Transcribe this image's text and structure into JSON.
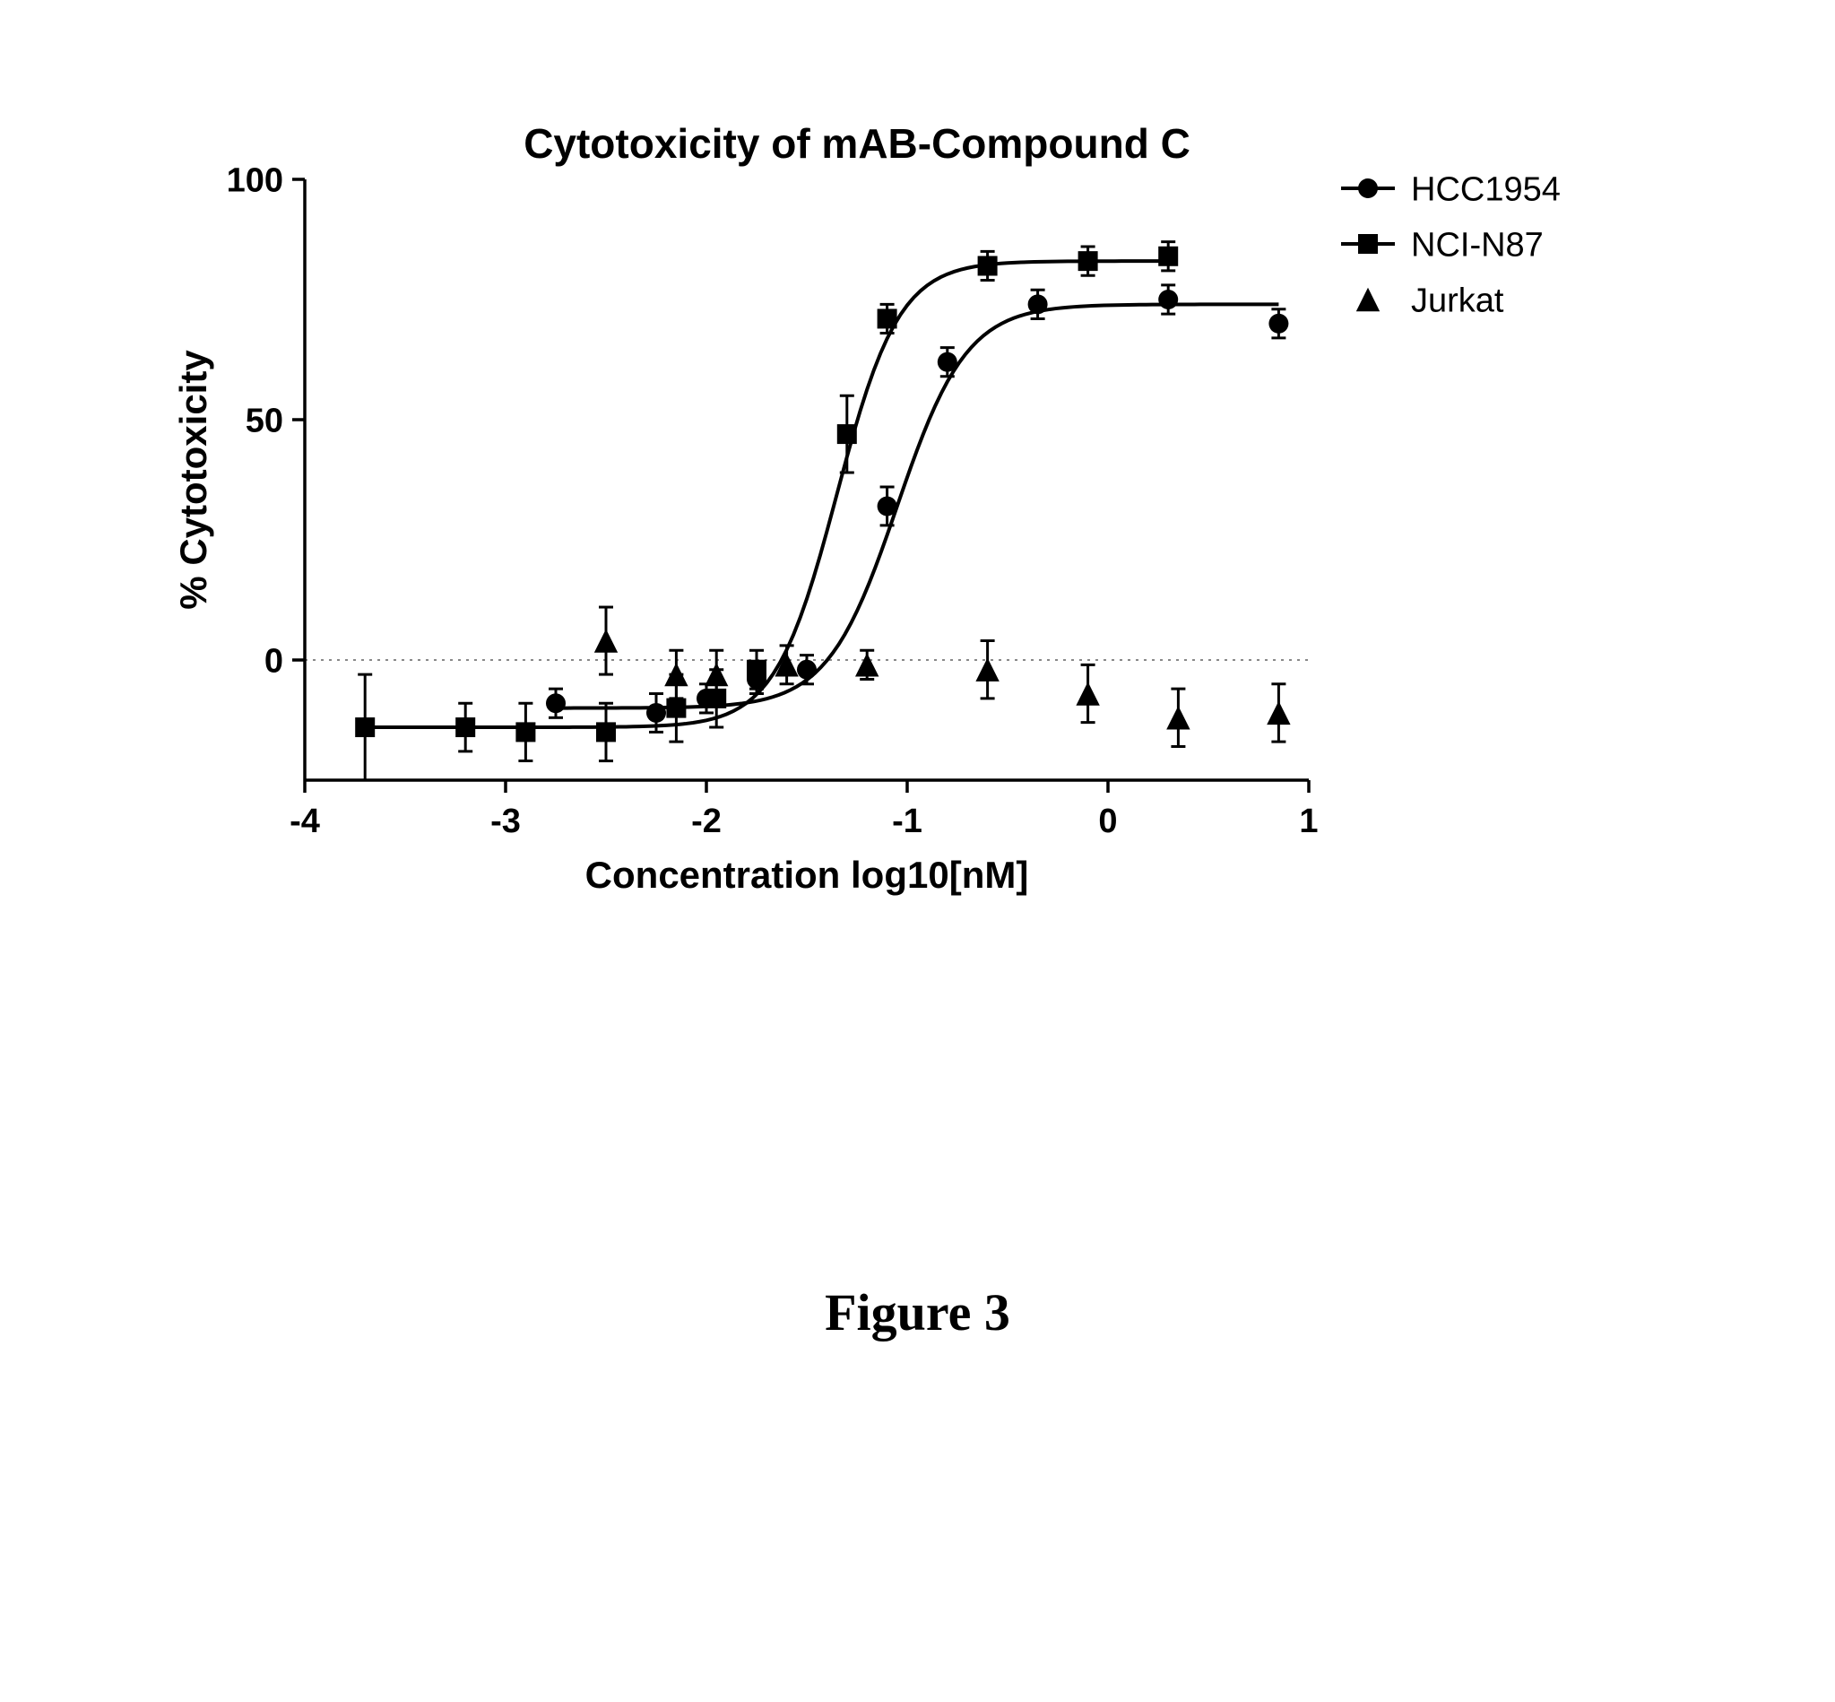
{
  "chart": {
    "type": "scatter+line",
    "title": "Cytotoxicity of mAB-Compound C",
    "title_fontsize": 46,
    "title_fontweight": "bold",
    "xlabel": "Concentration log10[nM]",
    "ylabel": "% Cytotoxicity",
    "label_fontsize": 42,
    "label_fontweight": "bold",
    "tick_fontsize": 38,
    "background_color": "#ffffff",
    "axis_color": "#000000",
    "axis_width": 3.5,
    "tick_length": 14,
    "xlim": [
      -4,
      1
    ],
    "ylim": [
      -25,
      100
    ],
    "xticks": [
      -4,
      -3,
      -2,
      -1,
      0,
      1
    ],
    "yticks": [
      0,
      50,
      100
    ],
    "zero_line": {
      "y": 0,
      "style": "dotted",
      "color": "#888888",
      "width": 2
    },
    "marker_size": 11,
    "error_cap_width": 16,
    "error_line_width": 3,
    "curve_width": 4,
    "series": {
      "HCC1954": {
        "label": "HCC1954",
        "marker": "circle",
        "color": "#000000",
        "has_curve": true,
        "curve": {
          "bottom": -10,
          "top": 74,
          "ec50": -1.05,
          "hill": 2.5
        },
        "points": [
          {
            "x": -2.75,
            "y": -9,
            "err": 3
          },
          {
            "x": -2.25,
            "y": -11,
            "err": 4
          },
          {
            "x": -2.0,
            "y": -8,
            "err": 3
          },
          {
            "x": -1.75,
            "y": -4,
            "err": 3
          },
          {
            "x": -1.5,
            "y": -2,
            "err": 3
          },
          {
            "x": -1.1,
            "y": 32,
            "err": 4
          },
          {
            "x": -0.8,
            "y": 62,
            "err": 3
          },
          {
            "x": -0.35,
            "y": 74,
            "err": 3
          },
          {
            "x": 0.3,
            "y": 75,
            "err": 3
          },
          {
            "x": 0.85,
            "y": 70,
            "err": 3
          }
        ]
      },
      "NCI_N87": {
        "label": "NCI-N87",
        "marker": "square",
        "color": "#000000",
        "has_curve": true,
        "curve": {
          "bottom": -14,
          "top": 83,
          "ec50": -1.35,
          "hill": 2.8
        },
        "points": [
          {
            "x": -3.7,
            "y": -14,
            "err": 11
          },
          {
            "x": -3.2,
            "y": -14,
            "err": 5
          },
          {
            "x": -2.9,
            "y": -15,
            "err": 6
          },
          {
            "x": -2.5,
            "y": -15,
            "err": 6
          },
          {
            "x": -2.15,
            "y": -10,
            "err": 7
          },
          {
            "x": -1.95,
            "y": -8,
            "err": 6
          },
          {
            "x": -1.75,
            "y": -2,
            "err": 4
          },
          {
            "x": -1.3,
            "y": 47,
            "err": 8
          },
          {
            "x": -1.1,
            "y": 71,
            "err": 3
          },
          {
            "x": -0.6,
            "y": 82,
            "err": 3
          },
          {
            "x": -0.1,
            "y": 83,
            "err": 3
          },
          {
            "x": 0.3,
            "y": 84,
            "err": 3
          }
        ]
      },
      "Jurkat": {
        "label": "Jurkat",
        "marker": "triangle",
        "color": "#000000",
        "has_curve": false,
        "points": [
          {
            "x": -2.5,
            "y": 4,
            "err": 7
          },
          {
            "x": -2.15,
            "y": -3,
            "err": 5
          },
          {
            "x": -1.95,
            "y": -3,
            "err": 5
          },
          {
            "x": -1.6,
            "y": -1,
            "err": 4
          },
          {
            "x": -1.2,
            "y": -1,
            "err": 3
          },
          {
            "x": -0.6,
            "y": -2,
            "err": 6
          },
          {
            "x": -0.1,
            "y": -7,
            "err": 6
          },
          {
            "x": 0.35,
            "y": -12,
            "err": 6
          },
          {
            "x": 0.85,
            "y": -11,
            "err": 6
          }
        ]
      }
    },
    "legend": {
      "x": 1.15,
      "ytop": 100,
      "fontsize": 38,
      "spacing": 62
    }
  },
  "caption": "Figure 3",
  "caption_fontsize": 58
}
